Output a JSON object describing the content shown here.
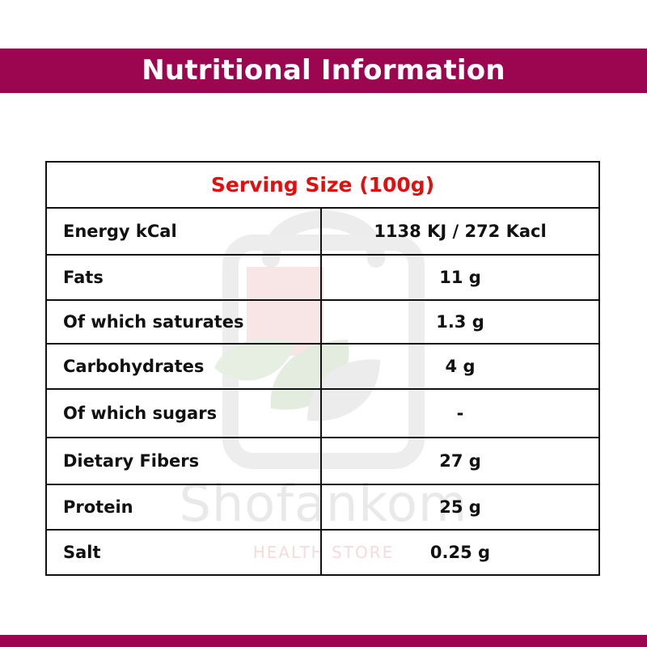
{
  "header": {
    "title": "Nutritional Information"
  },
  "watermark": {
    "brand": "Shofankom",
    "subtitle": "HEALTH STORE"
  },
  "table": {
    "serving_size": "Serving Size (100g)",
    "rows": [
      {
        "name": "Energy kCal",
        "value": "1138 KJ / 272 Kacl"
      },
      {
        "name": "Fats",
        "value": "11 g"
      },
      {
        "name": "Of which saturates",
        "value": "1.3 g"
      },
      {
        "name": "Carbohydrates",
        "value": "4 g"
      },
      {
        "name": "Of which sugars",
        "value": "-"
      },
      {
        "name": "Dietary Fibers",
        "value": "27 g"
      },
      {
        "name": "Protein",
        "value": "25 g"
      },
      {
        "name": "Salt",
        "value": "0.25 g"
      }
    ]
  },
  "colors": {
    "band": "#9c0651",
    "serving_text": "#e01010",
    "text": "#111111",
    "border": "#111111"
  }
}
